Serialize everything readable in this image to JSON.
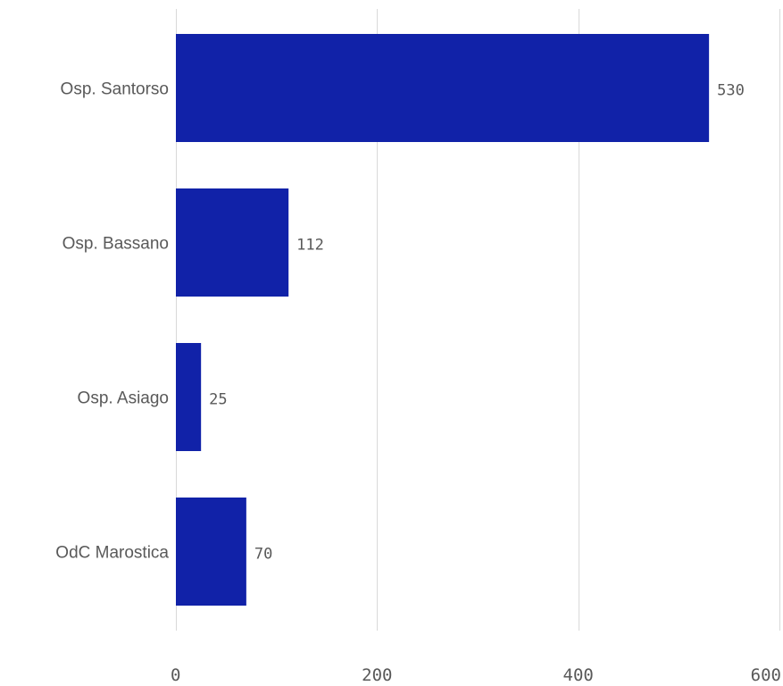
{
  "chart_data": {
    "type": "bar",
    "orientation": "horizontal",
    "categories": [
      "Osp. Santorso",
      "Osp. Bassano",
      "Osp. Asiago",
      "OdC Marostica"
    ],
    "values": [
      530,
      112,
      25,
      70
    ],
    "xlim": [
      0,
      600
    ],
    "xticks": [
      0,
      200,
      400,
      600
    ],
    "grid": true,
    "data_labels": true,
    "legend": "none",
    "bar_color": "#1122a8",
    "grid_color": "#d9d9d9",
    "label_color": "#595959"
  }
}
